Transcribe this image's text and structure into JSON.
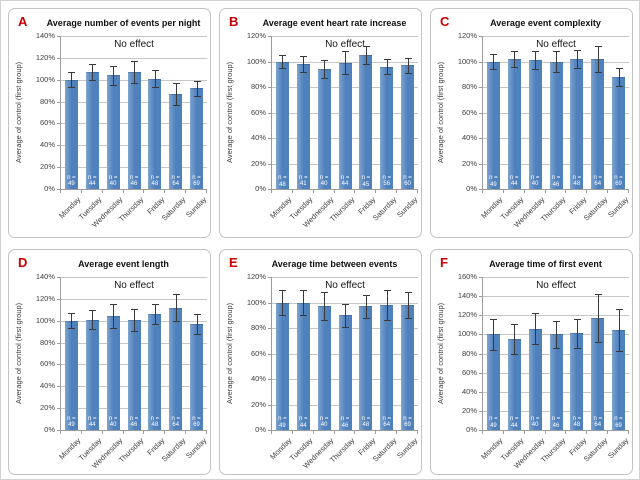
{
  "figure": {
    "n_prefix": "n =",
    "y_axis_label": "Average of control (first group)",
    "annotation": "No effect"
  },
  "colors": {
    "bar_fill": "#4f81bd",
    "error_bar": "#3a3a3a",
    "gridline": "#c6c6c6",
    "axis": "#9c9c9c",
    "panel_letter": "#cc0000",
    "panel_border": "#c3c3c3",
    "tick_text": "#3f3f3f",
    "n_label_text": "#ffffff"
  },
  "chart_data": [
    {
      "type": "bar",
      "panel_label": "A",
      "title": "Average number of events per night",
      "ylabel": "Average of control (first group)",
      "annotation": "No effect",
      "ylim": [
        0,
        140
      ],
      "ytick_step": 20,
      "grid": true,
      "categories": [
        "Monday",
        "Tuesday",
        "Wednesday",
        "Thursday",
        "Friday",
        "Saturday",
        "Sunday"
      ],
      "values": [
        100,
        107,
        104,
        107,
        101,
        87,
        92
      ],
      "errors": [
        7,
        7,
        9,
        10,
        8,
        10,
        7
      ],
      "n_values": [
        49,
        44,
        40,
        46,
        48,
        64,
        69
      ]
    },
    {
      "type": "bar",
      "panel_label": "B",
      "title": "Average event heart rate increase",
      "ylabel": "Average of control (first group)",
      "annotation": "No effect",
      "ylim": [
        0,
        120
      ],
      "ytick_step": 20,
      "grid": true,
      "categories": [
        "Monday",
        "Tuesday",
        "Wednesday",
        "Thursday",
        "Friday",
        "Saturday",
        "Sunday"
      ],
      "values": [
        100,
        98,
        94,
        99,
        105,
        96,
        97
      ],
      "errors": [
        5,
        6,
        7,
        9,
        7,
        6,
        6
      ],
      "n_values": [
        48,
        41,
        40,
        44,
        45,
        56,
        60
      ]
    },
    {
      "type": "bar",
      "panel_label": "C",
      "title": "Average event complexity",
      "ylabel": "Average of control (first group)",
      "annotation": "No effect",
      "ylim": [
        0,
        120
      ],
      "ytick_step": 20,
      "grid": true,
      "categories": [
        "Monday",
        "Tuesday",
        "Wednesday",
        "Thursday",
        "Friday",
        "Saturday",
        "Sunday"
      ],
      "values": [
        100,
        102,
        101,
        100,
        102,
        102,
        88
      ],
      "errors": [
        6,
        6,
        7,
        8,
        7,
        10,
        7
      ],
      "n_values": [
        49,
        44,
        40,
        46,
        48,
        64,
        69
      ]
    },
    {
      "type": "bar",
      "panel_label": "D",
      "title": "Average event length",
      "ylabel": "Average of control (first group)",
      "annotation": "No effect",
      "ylim": [
        0,
        140
      ],
      "ytick_step": 20,
      "grid": true,
      "categories": [
        "Monday",
        "Tuesday",
        "Wednesday",
        "Thursday",
        "Friday",
        "Saturday",
        "Sunday"
      ],
      "values": [
        100,
        101,
        104,
        101,
        106,
        112,
        97
      ],
      "errors": [
        7,
        9,
        11,
        10,
        9,
        12,
        9
      ],
      "n_values": [
        49,
        44,
        40,
        46,
        48,
        64,
        69
      ]
    },
    {
      "type": "bar",
      "panel_label": "E",
      "title": "Average time between events",
      "ylabel": "Average of control (first group)",
      "annotation": "No effect",
      "ylim": [
        0,
        120
      ],
      "ytick_step": 20,
      "grid": true,
      "categories": [
        "Monday",
        "Tuesday",
        "Wednesday",
        "Thursday",
        "Friday",
        "Saturday",
        "Sunday"
      ],
      "values": [
        100,
        100,
        97,
        90,
        97,
        98,
        98
      ],
      "errors": [
        10,
        10,
        11,
        9,
        9,
        12,
        10
      ],
      "n_values": [
        49,
        44,
        40,
        46,
        48,
        64,
        69
      ]
    },
    {
      "type": "bar",
      "panel_label": "F",
      "title": "Average time of first event",
      "ylabel": "Average of control (first group)",
      "annotation": "No effect",
      "ylim": [
        0,
        160
      ],
      "ytick_step": 20,
      "grid": true,
      "categories": [
        "Monday",
        "Tuesday",
        "Wednesday",
        "Thursday",
        "Friday",
        "Saturday",
        "Sunday"
      ],
      "values": [
        100,
        95,
        106,
        100,
        101,
        117,
        105
      ],
      "errors": [
        16,
        16,
        16,
        14,
        15,
        25,
        22
      ],
      "n_values": [
        49,
        44,
        40,
        46,
        48,
        64,
        69
      ]
    }
  ]
}
